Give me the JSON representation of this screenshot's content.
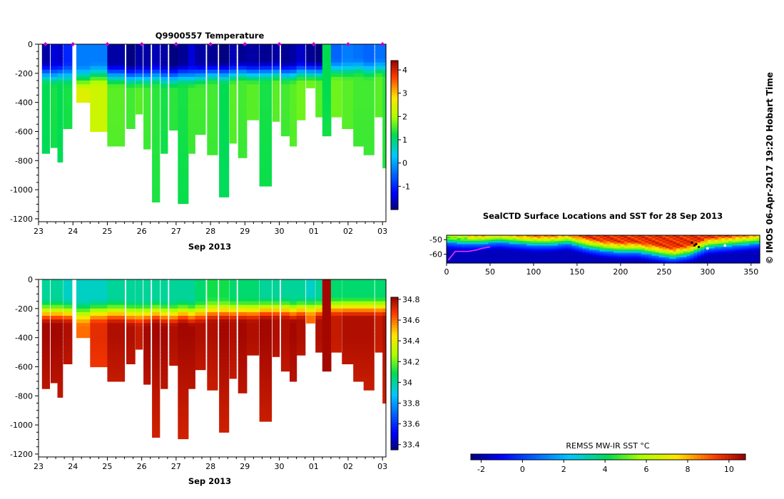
{
  "temperature_panel": {
    "title": "Q9900557  Temperature",
    "xlabel": "Sep 2013",
    "xticks": [
      "23",
      "24",
      "25",
      "26",
      "27",
      "28",
      "29",
      "30",
      "01",
      "02",
      "03"
    ],
    "yticks": [
      "0",
      "-200",
      "-400",
      "-600",
      "-800",
      "-1000",
      "-1200"
    ],
    "colorbar_ticks": [
      "4",
      "3",
      "2",
      "1",
      "0",
      "-1"
    ]
  },
  "salinity_panel": {
    "xlabel": "Sep 2013",
    "xticks": [
      "23",
      "24",
      "25",
      "26",
      "27",
      "28",
      "29",
      "30",
      "01",
      "02",
      "03"
    ],
    "yticks": [
      "0",
      "-200",
      "-400",
      "-600",
      "-800",
      "-1000",
      "-1200"
    ],
    "colorbar_ticks": [
      "34.8",
      "34.6",
      "34.4",
      "34.2",
      "34",
      "33.8",
      "33.6",
      "33.4"
    ]
  },
  "map_panel": {
    "title": "SealCTD Surface Locations and SST for 28 Sep 2013",
    "xticks": [
      "0",
      "50",
      "100",
      "150",
      "200",
      "250",
      "300",
      "350"
    ],
    "yticks": [
      "-50",
      "-60"
    ],
    "colorbar_title": "REMSS MW-IR SST °C",
    "colorbar_ticks": [
      "-2",
      "0",
      "2",
      "4",
      "6",
      "8",
      "10"
    ]
  },
  "credit": "© IMOS 06-Apr-2017 19:20 Hobart Time",
  "colors": {
    "profile_marker": "#c000c0",
    "track": "#ff30ff"
  },
  "chart_data": [
    {
      "type": "heatmap",
      "name": "temperature",
      "title": "Q9900557  Temperature",
      "xlabel": "Sep 2013",
      "ylabel": "",
      "xlim": [
        23,
        33.1
      ],
      "ylim": [
        -1220,
        0
      ],
      "clim": [
        -2,
        4.4
      ],
      "profiles": [
        {
          "t": 23.1,
          "w": 0.22,
          "maxDepth": 750,
          "surf": -1.8,
          "mld": 150,
          "deep": 1.2
        },
        {
          "t": 23.35,
          "w": 0.2,
          "maxDepth": 710,
          "surf": -1.5,
          "mld": 160,
          "deep": 1.3
        },
        {
          "t": 23.55,
          "w": 0.15,
          "maxDepth": 810,
          "surf": -1.6,
          "mld": 150,
          "deep": 1.2
        },
        {
          "t": 23.72,
          "w": 0.25,
          "maxDepth": 580,
          "surf": -1.0,
          "mld": 160,
          "deep": 1.3
        },
        {
          "t": 24.1,
          "w": 0.45,
          "maxDepth": 400,
          "surf": -0.3,
          "mld": 180,
          "deep": 2.5
        },
        {
          "t": 24.5,
          "w": 0.5,
          "maxDepth": 600,
          "surf": -0.3,
          "mld": 160,
          "deep": 2.3
        },
        {
          "t": 25.0,
          "w": 0.5,
          "maxDepth": 700,
          "surf": -1.8,
          "mld": 160,
          "deep": 1.6
        },
        {
          "t": 25.55,
          "w": 0.25,
          "maxDepth": 580,
          "surf": -2.0,
          "mld": 170,
          "deep": 1.5
        },
        {
          "t": 25.82,
          "w": 0.2,
          "maxDepth": 480,
          "surf": -1.8,
          "mld": 170,
          "deep": 1.6
        },
        {
          "t": 26.05,
          "w": 0.2,
          "maxDepth": 720,
          "surf": -1.8,
          "mld": 170,
          "deep": 1.5
        },
        {
          "t": 26.3,
          "w": 0.22,
          "maxDepth": 1085,
          "surf": -1.7,
          "mld": 160,
          "deep": 1.4
        },
        {
          "t": 26.55,
          "w": 0.2,
          "maxDepth": 750,
          "surf": -1.8,
          "mld": 170,
          "deep": 1.3
        },
        {
          "t": 26.8,
          "w": 0.25,
          "maxDepth": 590,
          "surf": -2.0,
          "mld": 170,
          "deep": 1.4
        },
        {
          "t": 27.05,
          "w": 0.3,
          "maxDepth": 1095,
          "surf": -1.9,
          "mld": 160,
          "deep": 1.3
        },
        {
          "t": 27.35,
          "w": 0.2,
          "maxDepth": 750,
          "surf": -1.5,
          "mld": 170,
          "deep": 1.5
        },
        {
          "t": 27.55,
          "w": 0.3,
          "maxDepth": 620,
          "surf": -1.8,
          "mld": 160,
          "deep": 1.5
        },
        {
          "t": 27.9,
          "w": 0.3,
          "maxDepth": 760,
          "surf": -1.9,
          "mld": 150,
          "deep": 1.5
        },
        {
          "t": 28.25,
          "w": 0.28,
          "maxDepth": 1050,
          "surf": -2.0,
          "mld": 150,
          "deep": 1.2
        },
        {
          "t": 28.55,
          "w": 0.2,
          "maxDepth": 680,
          "surf": -1.7,
          "mld": 150,
          "deep": 1.6
        },
        {
          "t": 28.8,
          "w": 0.25,
          "maxDepth": 780,
          "surf": -1.9,
          "mld": 140,
          "deep": 1.5
        },
        {
          "t": 29.05,
          "w": 0.35,
          "maxDepth": 520,
          "surf": -1.8,
          "mld": 150,
          "deep": 1.6
        },
        {
          "t": 29.42,
          "w": 0.35,
          "maxDepth": 975,
          "surf": -1.9,
          "mld": 140,
          "deep": 1.3
        },
        {
          "t": 29.8,
          "w": 0.2,
          "maxDepth": 530,
          "surf": -1.8,
          "mld": 140,
          "deep": 1.6
        },
        {
          "t": 30.05,
          "w": 0.25,
          "maxDepth": 630,
          "surf": -1.9,
          "mld": 150,
          "deep": 1.5
        },
        {
          "t": 30.3,
          "w": 0.2,
          "maxDepth": 700,
          "surf": -1.8,
          "mld": 150,
          "deep": 1.6
        },
        {
          "t": 30.5,
          "w": 0.25,
          "maxDepth": 520,
          "surf": -1.6,
          "mld": 140,
          "deep": 1.7
        },
        {
          "t": 30.78,
          "w": 0.25,
          "maxDepth": 300,
          "surf": -1.9,
          "mld": 140,
          "deep": 1.7
        },
        {
          "t": 31.05,
          "w": 0.2,
          "maxDepth": 500,
          "surf": -2.0,
          "mld": 140,
          "deep": 1.6
        },
        {
          "t": 31.25,
          "w": 0.25,
          "maxDepth": 630,
          "surf": 1.2,
          "mld": 400,
          "deep": 1.3
        },
        {
          "t": 31.5,
          "w": 0.3,
          "maxDepth": 500,
          "surf": -0.5,
          "mld": 130,
          "deep": 1.7
        },
        {
          "t": 31.82,
          "w": 0.35,
          "maxDepth": 580,
          "surf": -0.3,
          "mld": 130,
          "deep": 1.6
        },
        {
          "t": 32.15,
          "w": 0.3,
          "maxDepth": 700,
          "surf": -0.4,
          "mld": 120,
          "deep": 1.5
        },
        {
          "t": 32.45,
          "w": 0.3,
          "maxDepth": 760,
          "surf": -0.5,
          "mld": 130,
          "deep": 1.5
        },
        {
          "t": 32.78,
          "w": 0.25,
          "maxDepth": 500,
          "surf": -0.4,
          "mld": 120,
          "deep": 1.6
        },
        {
          "t": 33.0,
          "w": 0.1,
          "maxDepth": 850,
          "surf": -0.4,
          "mld": 120,
          "deep": 1.4
        }
      ],
      "surface_markers": [
        23.2,
        24.0,
        25.0,
        26.0,
        27.0,
        28.0,
        29.0,
        30.0,
        31.0,
        32.0,
        33.0
      ]
    },
    {
      "type": "heatmap",
      "name": "salinity",
      "title": "",
      "xlabel": "Sep 2013",
      "ylabel": "",
      "xlim": [
        23,
        33.1
      ],
      "ylim": [
        -1220,
        0
      ],
      "clim": [
        33.35,
        34.82
      ],
      "profiles": [
        {
          "t": 23.1,
          "w": 0.22,
          "maxDepth": 750,
          "surf": 34.0,
          "mld": 170,
          "deep": 34.8
        },
        {
          "t": 23.35,
          "w": 0.2,
          "maxDepth": 710,
          "surf": 34.0,
          "mld": 170,
          "deep": 34.8
        },
        {
          "t": 23.55,
          "w": 0.15,
          "maxDepth": 810,
          "surf": 34.0,
          "mld": 170,
          "deep": 34.8
        },
        {
          "t": 23.72,
          "w": 0.25,
          "maxDepth": 580,
          "surf": 33.95,
          "mld": 170,
          "deep": 34.78
        },
        {
          "t": 24.1,
          "w": 0.45,
          "maxDepth": 400,
          "surf": 33.95,
          "mld": 180,
          "deep": 34.6
        },
        {
          "t": 24.5,
          "w": 0.5,
          "maxDepth": 600,
          "surf": 33.95,
          "mld": 170,
          "deep": 34.7
        },
        {
          "t": 25.0,
          "w": 0.5,
          "maxDepth": 700,
          "surf": 34.0,
          "mld": 170,
          "deep": 34.78
        },
        {
          "t": 25.55,
          "w": 0.25,
          "maxDepth": 580,
          "surf": 34.0,
          "mld": 180,
          "deep": 34.78
        },
        {
          "t": 25.82,
          "w": 0.2,
          "maxDepth": 480,
          "surf": 34.0,
          "mld": 180,
          "deep": 34.75
        },
        {
          "t": 26.05,
          "w": 0.2,
          "maxDepth": 720,
          "surf": 34.0,
          "mld": 180,
          "deep": 34.8
        },
        {
          "t": 26.3,
          "w": 0.22,
          "maxDepth": 1085,
          "surf": 34.0,
          "mld": 170,
          "deep": 34.8
        },
        {
          "t": 26.55,
          "w": 0.2,
          "maxDepth": 750,
          "surf": 34.0,
          "mld": 180,
          "deep": 34.8
        },
        {
          "t": 26.8,
          "w": 0.25,
          "maxDepth": 590,
          "surf": 34.0,
          "mld": 180,
          "deep": 34.78
        },
        {
          "t": 27.05,
          "w": 0.3,
          "maxDepth": 1095,
          "surf": 34.0,
          "mld": 170,
          "deep": 34.8
        },
        {
          "t": 27.35,
          "w": 0.2,
          "maxDepth": 750,
          "surf": 34.0,
          "mld": 180,
          "deep": 34.8
        },
        {
          "t": 27.55,
          "w": 0.3,
          "maxDepth": 620,
          "surf": 34.05,
          "mld": 170,
          "deep": 34.78
        },
        {
          "t": 27.9,
          "w": 0.3,
          "maxDepth": 760,
          "surf": 34.1,
          "mld": 160,
          "deep": 34.78
        },
        {
          "t": 28.25,
          "w": 0.28,
          "maxDepth": 1050,
          "surf": 34.1,
          "mld": 160,
          "deep": 34.8
        },
        {
          "t": 28.55,
          "w": 0.2,
          "maxDepth": 680,
          "surf": 34.05,
          "mld": 160,
          "deep": 34.78
        },
        {
          "t": 28.8,
          "w": 0.25,
          "maxDepth": 780,
          "surf": 34.05,
          "mld": 160,
          "deep": 34.8
        },
        {
          "t": 29.05,
          "w": 0.35,
          "maxDepth": 520,
          "surf": 34.05,
          "mld": 160,
          "deep": 34.78
        },
        {
          "t": 29.42,
          "w": 0.35,
          "maxDepth": 975,
          "surf": 34.0,
          "mld": 150,
          "deep": 34.8
        },
        {
          "t": 29.8,
          "w": 0.2,
          "maxDepth": 530,
          "surf": 34.0,
          "mld": 150,
          "deep": 34.78
        },
        {
          "t": 30.05,
          "w": 0.25,
          "maxDepth": 630,
          "surf": 34.0,
          "mld": 150,
          "deep": 34.78
        },
        {
          "t": 30.3,
          "w": 0.2,
          "maxDepth": 700,
          "surf": 34.0,
          "mld": 160,
          "deep": 34.8
        },
        {
          "t": 30.5,
          "w": 0.25,
          "maxDepth": 520,
          "surf": 34.0,
          "mld": 150,
          "deep": 34.78
        },
        {
          "t": 30.78,
          "w": 0.25,
          "maxDepth": 300,
          "surf": 33.95,
          "mld": 140,
          "deep": 34.6
        },
        {
          "t": 31.05,
          "w": 0.2,
          "maxDepth": 500,
          "surf": 34.0,
          "mld": 150,
          "deep": 34.78
        },
        {
          "t": 31.25,
          "w": 0.25,
          "maxDepth": 630,
          "surf": 34.8,
          "mld": 0,
          "deep": 34.8
        },
        {
          "t": 31.5,
          "w": 0.3,
          "maxDepth": 500,
          "surf": 34.05,
          "mld": 140,
          "deep": 34.75
        },
        {
          "t": 31.82,
          "w": 0.35,
          "maxDepth": 580,
          "surf": 34.05,
          "mld": 140,
          "deep": 34.78
        },
        {
          "t": 32.15,
          "w": 0.3,
          "maxDepth": 700,
          "surf": 34.05,
          "mld": 140,
          "deep": 34.78
        },
        {
          "t": 32.45,
          "w": 0.3,
          "maxDepth": 760,
          "surf": 34.05,
          "mld": 140,
          "deep": 34.78
        },
        {
          "t": 32.78,
          "w": 0.25,
          "maxDepth": 500,
          "surf": 34.05,
          "mld": 140,
          "deep": 34.75
        },
        {
          "t": 33.0,
          "w": 0.1,
          "maxDepth": 850,
          "surf": 34.05,
          "mld": 140,
          "deep": 34.78
        }
      ]
    },
    {
      "type": "heatmap",
      "name": "sst_map",
      "title": "SealCTD Surface Locations and SST for 28 Sep 2013",
      "xlim": [
        0,
        360
      ],
      "ylim": [
        -66,
        -47
      ],
      "clim": [
        -2.5,
        10.8
      ],
      "front_lat": [
        [
          0,
          -51
        ],
        [
          20,
          -52
        ],
        [
          40,
          -52
        ],
        [
          60,
          -51
        ],
        [
          80,
          -52
        ],
        [
          100,
          -53
        ],
        [
          120,
          -53
        ],
        [
          140,
          -52
        ],
        [
          160,
          -55
        ],
        [
          180,
          -57
        ],
        [
          200,
          -58
        ],
        [
          220,
          -58
        ],
        [
          240,
          -60
        ],
        [
          260,
          -62
        ],
        [
          280,
          -60
        ],
        [
          300,
          -55
        ],
        [
          320,
          -54
        ],
        [
          340,
          -53
        ],
        [
          360,
          -52
        ]
      ],
      "track": [
        [
          2,
          -64
        ],
        [
          10,
          -58
        ],
        [
          25,
          -58
        ],
        [
          35,
          -57
        ],
        [
          40,
          -56
        ],
        [
          50,
          -55
        ]
      ],
      "black_points": [
        [
          282,
          -52
        ],
        [
          285,
          -54
        ],
        [
          287,
          -53
        ],
        [
          290,
          -55
        ]
      ],
      "white_points": [
        [
          300,
          -56
        ],
        [
          320,
          -54
        ]
      ]
    }
  ]
}
